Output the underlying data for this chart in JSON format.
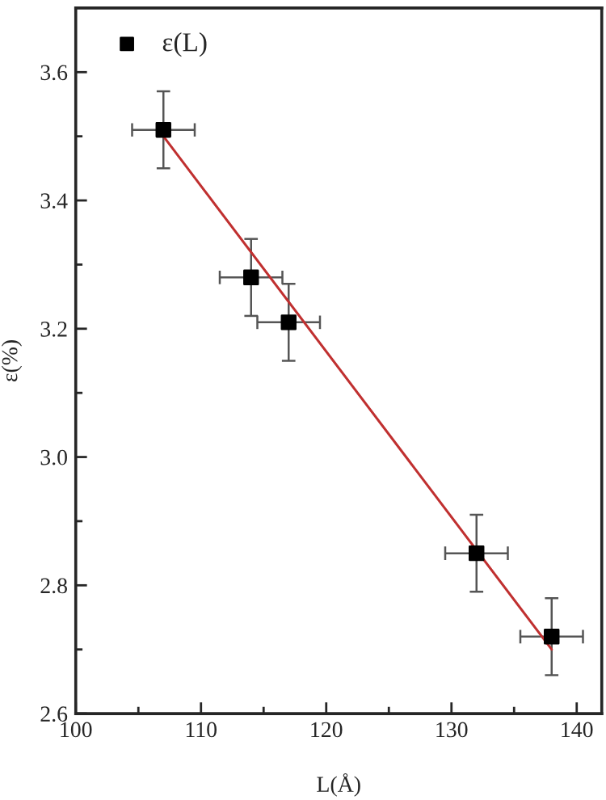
{
  "chart_data": {
    "type": "scatter",
    "xlabel": "L(Å)",
    "ylabel": "ε(%)",
    "xlim": [
      100,
      142
    ],
    "xticks": [
      100,
      110,
      120,
      130,
      140
    ],
    "ylim": [
      2.6,
      3.7
    ],
    "yticks": [
      {
        "value": 2.6,
        "label": "2.6"
      },
      {
        "value": 2.8,
        "label": "2.8"
      },
      {
        "value": 3.0,
        "label": "3.0"
      },
      {
        "value": 3.2,
        "label": "3.2"
      },
      {
        "value": 3.4,
        "label": "3.4"
      },
      {
        "value": 3.6,
        "label": "3.6"
      }
    ],
    "grid": false,
    "legend": "top left",
    "series": [
      {
        "name": "ε(L)",
        "marker": "square",
        "color": "#000000",
        "x": [
          107,
          114,
          117,
          132,
          138
        ],
        "values": [
          3.51,
          3.28,
          3.21,
          2.85,
          2.72
        ],
        "errors": [
          0.06,
          0.06,
          0.06,
          0.06,
          0.06
        ],
        "xerrors": [
          2.5,
          2.5,
          2.5,
          2.5,
          2.5
        ]
      },
      {
        "type": "line",
        "marker": "none",
        "line_style": "solid",
        "color": "#c03030",
        "x": [
          107,
          138
        ],
        "values": [
          3.5,
          2.7
        ]
      }
    ]
  }
}
